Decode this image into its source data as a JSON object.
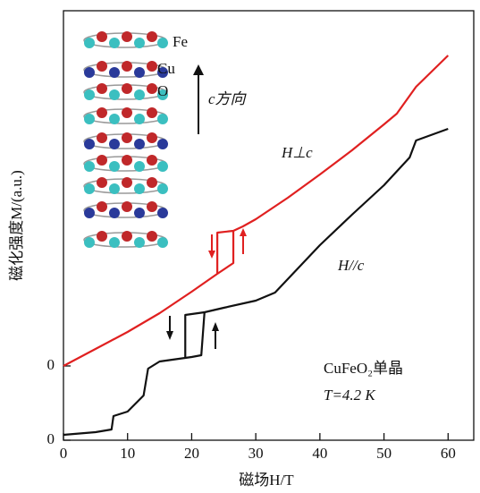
{
  "chart_data": {
    "type": "line",
    "x_label": "磁场H/T",
    "y_label": "磁化强度M/(a.u.)",
    "xlim": [
      0,
      64
    ],
    "xticks": [
      0,
      10,
      20,
      30,
      40,
      50,
      60
    ],
    "ylim": [
      0,
      48
    ],
    "yticks": [
      0,
      {
        "value": 8.3,
        "label": "0"
      }
    ],
    "series": [
      {
        "name": "H⊥c",
        "color": "#e02020",
        "x": [
          0,
          5,
          10,
          15,
          20,
          24,
          26.5,
          26.5,
          28,
          30,
          35,
          40,
          45,
          50,
          52,
          55,
          60,
          null,
          26.5,
          24,
          24
        ],
        "values": [
          8.3,
          10.2,
          12.1,
          14.2,
          16.6,
          18.6,
          19.8,
          23.4,
          23.9,
          24.7,
          27.1,
          29.7,
          32.4,
          35.3,
          36.5,
          39.5,
          43.0,
          null,
          23.4,
          23.2,
          18.6
        ]
      },
      {
        "name": "H//c",
        "color": "#111111",
        "x": [
          0,
          5,
          7.5,
          7.8,
          10,
          12.5,
          13.2,
          15,
          20,
          21.5,
          22,
          25,
          30,
          33,
          40,
          45,
          50,
          54,
          55,
          60,
          null,
          22,
          19,
          19
        ],
        "values": [
          0.6,
          0.9,
          1.2,
          2.7,
          3.2,
          5.0,
          8.0,
          8.8,
          9.3,
          9.5,
          14.3,
          14.8,
          15.6,
          16.5,
          21.8,
          25.2,
          28.5,
          31.6,
          33.5,
          34.8,
          null,
          14.3,
          14.0,
          9.2
        ]
      }
    ],
    "annotations": [
      "Fe",
      "Cu",
      "O",
      "c方向",
      "CuFeO₂单晶",
      "T=4.2 K"
    ]
  }
}
